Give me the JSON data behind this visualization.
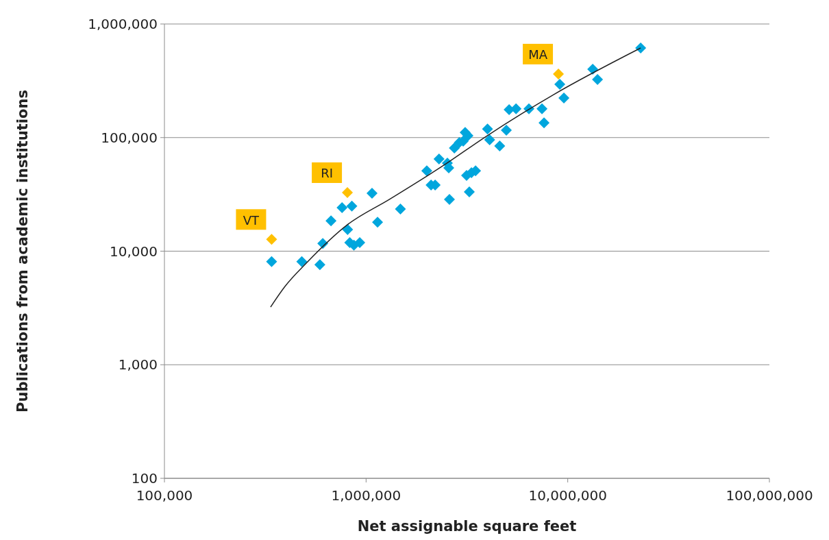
{
  "chart_data": {
    "type": "scatter",
    "xlabel": "Net assignable square feet",
    "ylabel": "Publications from academic institutions",
    "log": "xy",
    "grid": "y",
    "marker": "diamond",
    "xlim": [
      100000,
      100000000
    ],
    "xticks": [
      {
        "value": 100000,
        "label": "100,000"
      },
      {
        "value": 1000000,
        "label": "1,000,000"
      },
      {
        "value": 10000000,
        "label": "10,000,000"
      },
      {
        "value": 100000000,
        "label": "100,000,000"
      }
    ],
    "ylim": [
      100,
      1000000
    ],
    "yticks": [
      {
        "value": 100,
        "label": "100"
      },
      {
        "value": 1000,
        "label": "1,000"
      },
      {
        "value": 10000,
        "label": "10,000"
      },
      {
        "value": 100000,
        "label": "100,000"
      },
      {
        "value": 1000000,
        "label": "1,000,000"
      }
    ],
    "series": [
      {
        "color": "#00a6dd",
        "x": [
          340000,
          480000,
          590000,
          610000,
          670000,
          760000,
          850000,
          810000,
          830000,
          870000,
          930000,
          1070000,
          1140000,
          1480000,
          2000000,
          2100000,
          2200000,
          2300000,
          2530000,
          2590000,
          2570000,
          2740000,
          2900000,
          3030000,
          3100000,
          3200000,
          3150000,
          3330000,
          3490000,
          3250000,
          4000000,
          4100000,
          4600000,
          4960000,
          5120000,
          5540000,
          6420000,
          7450000,
          7630000,
          9130000,
          9570000,
          13300000,
          14050000,
          23000000
        ],
        "values": [
          8100,
          8100,
          7600,
          11700,
          18500,
          24200,
          24900,
          15500,
          11900,
          11300,
          11900,
          32400,
          18000,
          23500,
          51000,
          38200,
          38200,
          64800,
          59600,
          28500,
          54100,
          80900,
          90400,
          93000,
          111000,
          104000,
          46400,
          49100,
          51000,
          33200,
          119000,
          95600,
          84400,
          116000,
          176000,
          179000,
          179000,
          179000,
          135000,
          294000,
          223000,
          400000,
          325000,
          615000
        ]
      },
      {
        "color": "#ffc000",
        "x": [
          340000,
          808000,
          8990000
        ],
        "values": [
          12700,
          32800,
          363000
        ]
      },
      {
        "type": "line",
        "color": "#222222",
        "marker": "none",
        "x": [
          336000,
          396000,
          509000,
          808000,
          1302000,
          2434000,
          3892000,
          8510000,
          23000000
        ],
        "values": [
          3220,
          4890,
          7950,
          17100,
          28500,
          57200,
          101000,
          239000,
          615000
        ]
      }
    ],
    "annotations": [
      {
        "text": "VT",
        "x": 340000,
        "y": 12700
      },
      {
        "text": "RI",
        "x": 808000,
        "y": 32800
      },
      {
        "text": "MA",
        "x": 8990000,
        "y": 363000
      }
    ]
  }
}
